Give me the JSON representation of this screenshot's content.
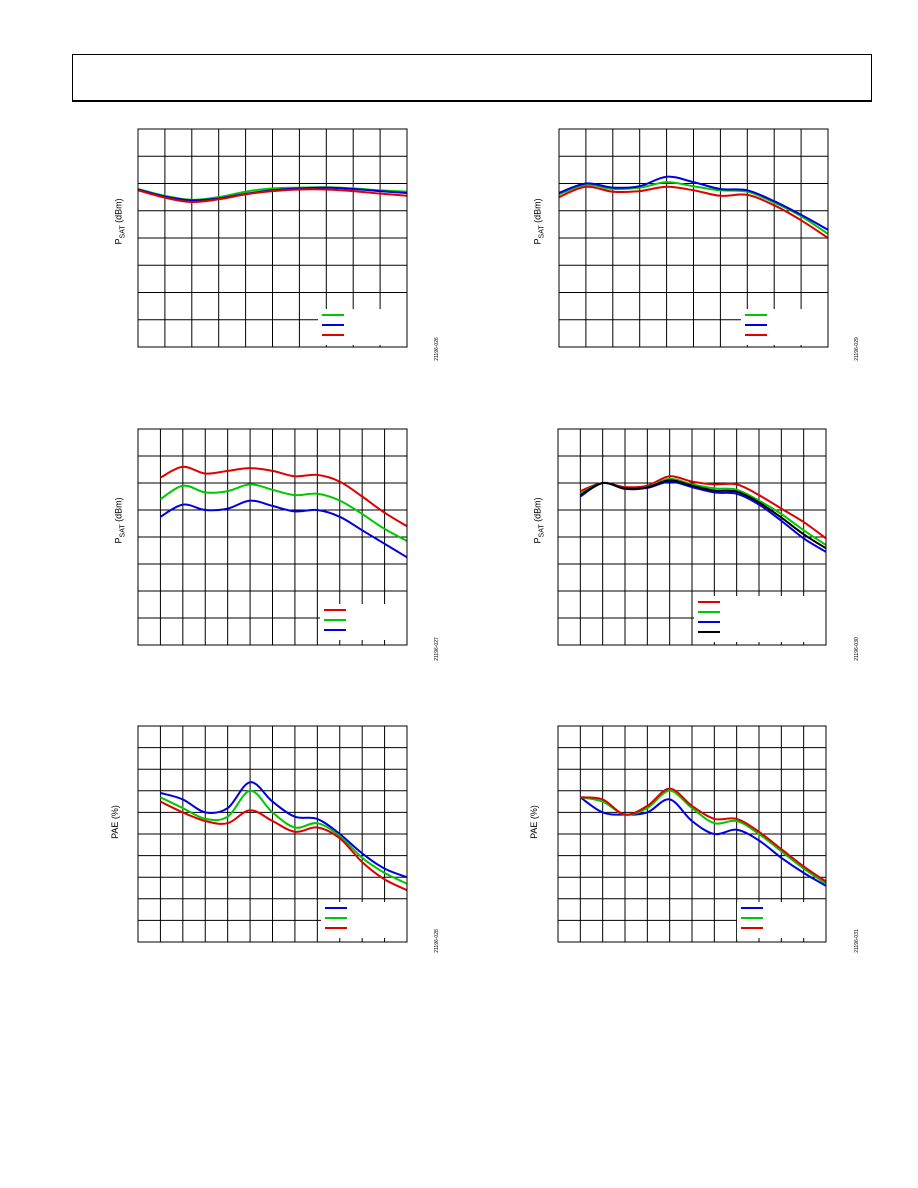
{
  "page": {
    "header": ""
  },
  "chart_data": [
    {
      "id": "c1",
      "type": "line",
      "ylabel_main": "P",
      "ylabel_sub": "SAT",
      "ylabel_unit": " (dBm)",
      "figure_id": "21196-026",
      "grid": true,
      "legend_placement": "bottom-right",
      "xlim": [
        0,
        10
      ],
      "ylim": [
        0,
        8
      ],
      "series": [
        {
          "color": "#00c800",
          "x": [
            0,
            1,
            2,
            3,
            4,
            5,
            6,
            7,
            8,
            9,
            10
          ],
          "y": [
            5.8,
            5.55,
            5.4,
            5.5,
            5.7,
            5.82,
            5.85,
            5.86,
            5.82,
            5.75,
            5.7
          ]
        },
        {
          "color": "#0000e0",
          "x": [
            0,
            1,
            2,
            3,
            4,
            5,
            6,
            7,
            8,
            9,
            10
          ],
          "y": [
            5.78,
            5.52,
            5.38,
            5.45,
            5.62,
            5.75,
            5.82,
            5.85,
            5.8,
            5.72,
            5.65
          ]
        },
        {
          "color": "#e00000",
          "x": [
            0,
            1,
            2,
            3,
            4,
            5,
            6,
            7,
            8,
            9,
            10
          ],
          "y": [
            5.75,
            5.48,
            5.32,
            5.42,
            5.6,
            5.72,
            5.78,
            5.78,
            5.72,
            5.63,
            5.55
          ]
        }
      ]
    },
    {
      "id": "c2",
      "type": "line",
      "ylabel_main": "P",
      "ylabel_sub": "SAT",
      "ylabel_unit": " (dBm)",
      "figure_id": "21196-029",
      "grid": true,
      "legend_placement": "bottom-right",
      "xlim": [
        0,
        10
      ],
      "ylim": [
        0,
        8
      ],
      "series": [
        {
          "color": "#00c800",
          "x": [
            0,
            1,
            2,
            3,
            4,
            5,
            6,
            7,
            8,
            9,
            10
          ],
          "y": [
            5.6,
            5.95,
            5.8,
            5.85,
            6.05,
            5.9,
            5.75,
            5.7,
            5.3,
            4.8,
            4.15
          ]
        },
        {
          "color": "#0000e0",
          "x": [
            0,
            1,
            2,
            3,
            4,
            5,
            6,
            7,
            8,
            9,
            10
          ],
          "y": [
            5.65,
            6.0,
            5.85,
            5.9,
            6.25,
            6.05,
            5.8,
            5.75,
            5.35,
            4.85,
            4.3
          ]
        },
        {
          "color": "#e00000",
          "x": [
            0,
            1,
            2,
            3,
            4,
            5,
            6,
            7,
            8,
            9,
            10
          ],
          "y": [
            5.5,
            5.88,
            5.7,
            5.72,
            5.88,
            5.75,
            5.55,
            5.58,
            5.2,
            4.65,
            4.0
          ]
        }
      ]
    },
    {
      "id": "c3",
      "type": "line",
      "ylabel_main": "P",
      "ylabel_sub": "SAT",
      "ylabel_unit": " (dBm)",
      "figure_id": "21196-027",
      "grid": true,
      "legend_placement": "bottom-right",
      "xlim": [
        0,
        12
      ],
      "ylim": [
        0,
        8
      ],
      "series": [
        {
          "color": "#e00000",
          "x": [
            1,
            2,
            3,
            4,
            5,
            6,
            7,
            8,
            9,
            10,
            11,
            12
          ],
          "y": [
            6.2,
            6.6,
            6.35,
            6.45,
            6.55,
            6.45,
            6.25,
            6.3,
            6.05,
            5.5,
            4.9,
            4.4
          ]
        },
        {
          "color": "#00c800",
          "x": [
            1,
            2,
            3,
            4,
            5,
            6,
            7,
            8,
            9,
            10,
            11,
            12
          ],
          "y": [
            5.4,
            5.9,
            5.65,
            5.7,
            5.95,
            5.75,
            5.55,
            5.6,
            5.35,
            4.85,
            4.3,
            3.85
          ]
        },
        {
          "color": "#0000e0",
          "x": [
            1,
            2,
            3,
            4,
            5,
            6,
            7,
            8,
            9,
            10,
            11,
            12
          ],
          "y": [
            4.75,
            5.2,
            5.0,
            5.05,
            5.35,
            5.15,
            4.95,
            5.0,
            4.75,
            4.25,
            3.75,
            3.25
          ]
        }
      ]
    },
    {
      "id": "c4",
      "type": "line",
      "ylabel_main": "P",
      "ylabel_sub": "SAT",
      "ylabel_unit": " (dBm)",
      "figure_id": "21196-030",
      "grid": true,
      "legend_placement": "bottom-right",
      "xlim": [
        0,
        12
      ],
      "ylim": [
        0,
        8
      ],
      "series": [
        {
          "color": "#e00000",
          "x": [
            1,
            2,
            3,
            4,
            5,
            6,
            7,
            8,
            9,
            10,
            11,
            12
          ],
          "y": [
            5.7,
            6.0,
            5.85,
            5.9,
            6.25,
            6.05,
            5.95,
            5.95,
            5.55,
            5.05,
            4.55,
            3.95
          ]
        },
        {
          "color": "#00c800",
          "x": [
            1,
            2,
            3,
            4,
            5,
            6,
            7,
            8,
            9,
            10,
            11,
            12
          ],
          "y": [
            5.6,
            6.0,
            5.8,
            5.85,
            6.15,
            5.95,
            5.8,
            5.75,
            5.35,
            4.85,
            4.25,
            3.7
          ]
        },
        {
          "color": "#0000e0",
          "x": [
            1,
            2,
            3,
            4,
            5,
            6,
            7,
            8,
            9,
            10,
            11,
            12
          ],
          "y": [
            5.5,
            6.0,
            5.78,
            5.82,
            6.05,
            5.85,
            5.65,
            5.6,
            5.2,
            4.6,
            3.95,
            3.45
          ]
        },
        {
          "color": "#000000",
          "x": [
            1,
            2,
            3,
            4,
            5,
            6,
            7,
            8,
            9,
            10,
            11,
            12
          ],
          "y": [
            5.55,
            6.0,
            5.8,
            5.84,
            6.1,
            5.9,
            5.72,
            5.68,
            5.28,
            4.72,
            4.1,
            3.58
          ]
        }
      ]
    },
    {
      "id": "c5",
      "type": "line",
      "ylabel_main": "PAE (%)",
      "ylabel_sub": "",
      "ylabel_unit": "",
      "figure_id": "21196-028",
      "grid": true,
      "legend_placement": "bottom-right",
      "xlim": [
        0,
        12
      ],
      "ylim": [
        0,
        10
      ],
      "series": [
        {
          "color": "#0000e0",
          "x": [
            1,
            2,
            3,
            4,
            5,
            6,
            7,
            8,
            9,
            10,
            11,
            12
          ],
          "y": [
            6.9,
            6.6,
            6.0,
            6.2,
            7.4,
            6.5,
            5.8,
            5.7,
            5.0,
            4.1,
            3.4,
            3.0
          ]
        },
        {
          "color": "#00c800",
          "x": [
            1,
            2,
            3,
            4,
            5,
            6,
            7,
            8,
            9,
            10,
            11,
            12
          ],
          "y": [
            6.7,
            6.2,
            5.7,
            5.8,
            7.0,
            6.0,
            5.3,
            5.5,
            4.9,
            3.9,
            3.2,
            2.7
          ]
        },
        {
          "color": "#e00000",
          "x": [
            1,
            2,
            3,
            4,
            5,
            6,
            7,
            8,
            9,
            10,
            11,
            12
          ],
          "y": [
            6.5,
            6.0,
            5.6,
            5.5,
            6.1,
            5.6,
            5.1,
            5.3,
            4.8,
            3.7,
            2.9,
            2.4
          ]
        }
      ]
    },
    {
      "id": "c6",
      "type": "line",
      "ylabel_main": "PAE (%)",
      "ylabel_sub": "",
      "ylabel_unit": "",
      "figure_id": "21196-031",
      "grid": true,
      "legend_placement": "bottom-right",
      "xlim": [
        0,
        12
      ],
      "ylim": [
        0,
        10
      ],
      "series": [
        {
          "color": "#0000e0",
          "x": [
            1,
            2,
            3,
            4,
            5,
            6,
            7,
            8,
            9,
            10,
            11,
            12
          ],
          "y": [
            6.7,
            6.0,
            5.9,
            6.0,
            6.6,
            5.6,
            5.0,
            5.2,
            4.7,
            3.9,
            3.2,
            2.6
          ]
        },
        {
          "color": "#00c800",
          "x": [
            1,
            2,
            3,
            4,
            5,
            6,
            7,
            8,
            9,
            10,
            11,
            12
          ],
          "y": [
            6.7,
            6.5,
            5.9,
            6.2,
            7.0,
            6.2,
            5.5,
            5.6,
            5.0,
            4.2,
            3.4,
            2.7
          ]
        },
        {
          "color": "#e00000",
          "x": [
            1,
            2,
            3,
            4,
            5,
            6,
            7,
            8,
            9,
            10,
            11,
            12
          ],
          "y": [
            6.7,
            6.6,
            5.9,
            6.3,
            7.1,
            6.3,
            5.7,
            5.7,
            5.1,
            4.3,
            3.5,
            2.8
          ]
        }
      ]
    }
  ]
}
